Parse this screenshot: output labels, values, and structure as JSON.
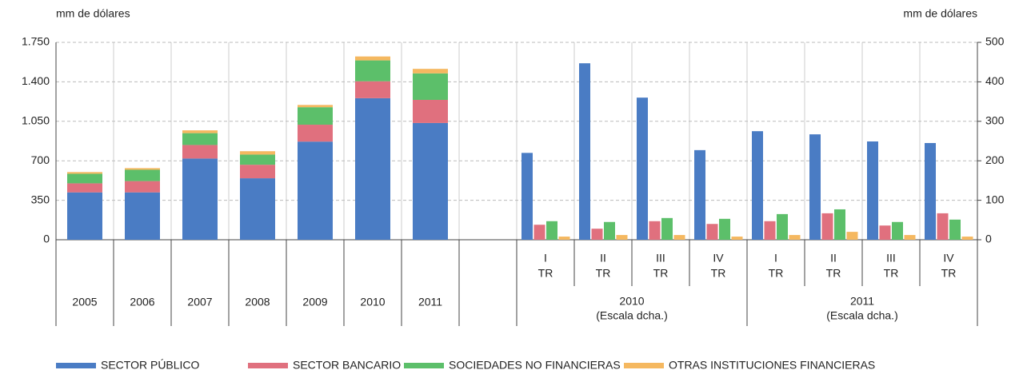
{
  "chart_data": {
    "type": "bar",
    "y_axis_label": "mm de dólares",
    "y2_axis_label": "mm de dólares",
    "categories": [
      "2005",
      "2006",
      "2007",
      "2008",
      "2009",
      "2010",
      "2011"
    ],
    "quarter_categories": [
      {
        "period": "I",
        "unit": "TR"
      },
      {
        "period": "II",
        "unit": "TR"
      },
      {
        "period": "III",
        "unit": "TR"
      },
      {
        "period": "IV",
        "unit": "TR"
      },
      {
        "period": "I",
        "unit": "TR"
      },
      {
        "period": "II",
        "unit": "TR"
      },
      {
        "period": "III",
        "unit": "TR"
      },
      {
        "period": "IV",
        "unit": "TR"
      }
    ],
    "quarter_groups": [
      {
        "year": "2010",
        "note": "(Escala dcha.)"
      },
      {
        "year": "2011",
        "note": "(Escala dcha.)"
      }
    ],
    "series": [
      {
        "name": "SECTOR PÚBLICO",
        "color": "#4a7cc4",
        "values": [
          420,
          420,
          720,
          545,
          870,
          1255,
          1035
        ],
        "quarterly_values": [
          220,
          447,
          360,
          227,
          275,
          267,
          249,
          245
        ]
      },
      {
        "name": "SECTOR BANCARIO",
        "color": "#e0707e",
        "values": [
          80,
          100,
          120,
          120,
          150,
          150,
          205
        ],
        "quarterly_values": [
          38,
          28,
          47,
          40,
          47,
          67,
          36,
          67
        ]
      },
      {
        "name": "SOCIEDADES NO FINANCIERAS",
        "color": "#5cbf6a",
        "values": [
          85,
          100,
          105,
          90,
          155,
          185,
          235
        ],
        "quarterly_values": [
          47,
          45,
          55,
          53,
          65,
          77,
          45,
          51
        ]
      },
      {
        "name": "OTRAS INSTITUCIONES FINANCIERAS",
        "color": "#f5b860",
        "values": [
          15,
          15,
          25,
          30,
          20,
          35,
          40
        ],
        "quarterly_values": [
          8,
          12,
          12,
          8,
          12,
          20,
          12,
          8
        ]
      }
    ],
    "ylim": [
      0,
      1750
    ],
    "yticks": [
      0,
      350,
      700,
      {
        "value": 1050,
        "label": "1.050"
      },
      {
        "value": 1400,
        "label": "1.400"
      },
      {
        "value": 1750,
        "label": "1.750"
      }
    ],
    "y2lim": [
      0,
      500
    ],
    "y2ticks": [
      0,
      100,
      200,
      300,
      400,
      500
    ],
    "grid": true
  }
}
